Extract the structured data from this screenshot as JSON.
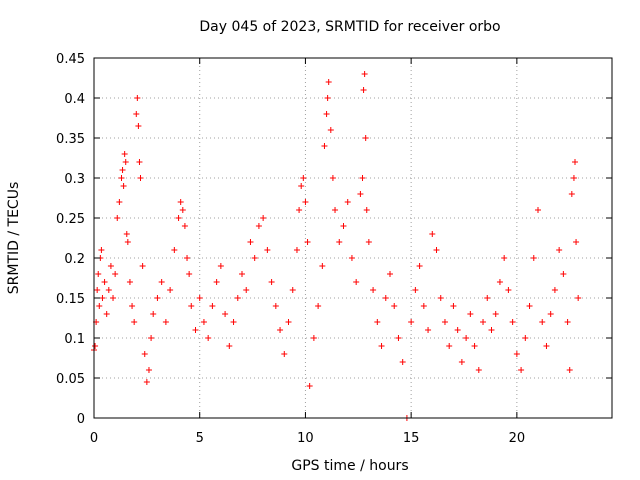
{
  "chart_data": {
    "type": "scatter",
    "title": "Day 045 of 2023, SRMTID for receiver orbo",
    "xlabel": "GPS time / hours",
    "ylabel": "SRMTID / TECUs",
    "xlim": [
      0,
      24.5
    ],
    "ylim": [
      0,
      0.45
    ],
    "xticks": [
      0,
      5,
      10,
      15,
      20
    ],
    "xtick_labels": [
      "0",
      "5",
      "10",
      "15",
      "20"
    ],
    "yticks": [
      0,
      0.05,
      0.1,
      0.15,
      0.2,
      0.25,
      0.3,
      0.35,
      0.4,
      0.45
    ],
    "ytick_labels": [
      "0",
      "0.05",
      "0.1",
      "0.15",
      "0.2",
      "0.25",
      "0.3",
      "0.35",
      "0.4",
      "0.45"
    ],
    "grid": true,
    "marker": "plus",
    "color": "#ff0000",
    "series": [
      {
        "name": "SRMTID",
        "points": [
          [
            0.0,
            0.085
          ],
          [
            0.05,
            0.09
          ],
          [
            0.1,
            0.12
          ],
          [
            0.15,
            0.16
          ],
          [
            0.2,
            0.18
          ],
          [
            0.25,
            0.14
          ],
          [
            0.3,
            0.2
          ],
          [
            0.35,
            0.21
          ],
          [
            0.4,
            0.15
          ],
          [
            0.5,
            0.17
          ],
          [
            0.6,
            0.13
          ],
          [
            0.7,
            0.16
          ],
          [
            0.8,
            0.19
          ],
          [
            0.9,
            0.15
          ],
          [
            1.0,
            0.18
          ],
          [
            1.1,
            0.25
          ],
          [
            1.2,
            0.27
          ],
          [
            1.3,
            0.3
          ],
          [
            1.35,
            0.31
          ],
          [
            1.4,
            0.29
          ],
          [
            1.45,
            0.33
          ],
          [
            1.5,
            0.32
          ],
          [
            1.55,
            0.23
          ],
          [
            1.6,
            0.22
          ],
          [
            1.7,
            0.17
          ],
          [
            1.8,
            0.14
          ],
          [
            1.9,
            0.12
          ],
          [
            2.0,
            0.38
          ],
          [
            2.05,
            0.4
          ],
          [
            2.1,
            0.365
          ],
          [
            2.15,
            0.32
          ],
          [
            2.2,
            0.3
          ],
          [
            2.3,
            0.19
          ],
          [
            2.4,
            0.08
          ],
          [
            2.5,
            0.045
          ],
          [
            2.6,
            0.06
          ],
          [
            2.7,
            0.1
          ],
          [
            2.8,
            0.13
          ],
          [
            3.0,
            0.15
          ],
          [
            3.2,
            0.17
          ],
          [
            3.4,
            0.12
          ],
          [
            3.6,
            0.16
          ],
          [
            3.8,
            0.21
          ],
          [
            4.0,
            0.25
          ],
          [
            4.1,
            0.27
          ],
          [
            4.2,
            0.26
          ],
          [
            4.3,
            0.24
          ],
          [
            4.4,
            0.2
          ],
          [
            4.5,
            0.18
          ],
          [
            4.6,
            0.14
          ],
          [
            4.8,
            0.11
          ],
          [
            5.0,
            0.15
          ],
          [
            5.2,
            0.12
          ],
          [
            5.4,
            0.1
          ],
          [
            5.6,
            0.14
          ],
          [
            5.8,
            0.17
          ],
          [
            6.0,
            0.19
          ],
          [
            6.2,
            0.13
          ],
          [
            6.4,
            0.09
          ],
          [
            6.6,
            0.12
          ],
          [
            6.8,
            0.15
          ],
          [
            7.0,
            0.18
          ],
          [
            7.2,
            0.16
          ],
          [
            7.4,
            0.22
          ],
          [
            7.6,
            0.2
          ],
          [
            7.8,
            0.24
          ],
          [
            8.0,
            0.25
          ],
          [
            8.2,
            0.21
          ],
          [
            8.4,
            0.17
          ],
          [
            8.6,
            0.14
          ],
          [
            8.8,
            0.11
          ],
          [
            9.0,
            0.08
          ],
          [
            9.2,
            0.12
          ],
          [
            9.4,
            0.16
          ],
          [
            9.6,
            0.21
          ],
          [
            9.7,
            0.26
          ],
          [
            9.8,
            0.29
          ],
          [
            9.9,
            0.3
          ],
          [
            10.0,
            0.27
          ],
          [
            10.1,
            0.22
          ],
          [
            10.2,
            0.04
          ],
          [
            10.4,
            0.1
          ],
          [
            10.6,
            0.14
          ],
          [
            10.8,
            0.19
          ],
          [
            10.9,
            0.34
          ],
          [
            11.0,
            0.38
          ],
          [
            11.05,
            0.4
          ],
          [
            11.1,
            0.42
          ],
          [
            11.2,
            0.36
          ],
          [
            11.3,
            0.3
          ],
          [
            11.4,
            0.26
          ],
          [
            11.6,
            0.22
          ],
          [
            11.8,
            0.24
          ],
          [
            12.0,
            0.27
          ],
          [
            12.2,
            0.2
          ],
          [
            12.4,
            0.17
          ],
          [
            12.6,
            0.28
          ],
          [
            12.7,
            0.3
          ],
          [
            12.75,
            0.41
          ],
          [
            12.8,
            0.43
          ],
          [
            12.85,
            0.35
          ],
          [
            12.9,
            0.26
          ],
          [
            13.0,
            0.22
          ],
          [
            13.2,
            0.16
          ],
          [
            13.4,
            0.12
          ],
          [
            13.6,
            0.09
          ],
          [
            13.8,
            0.15
          ],
          [
            14.0,
            0.18
          ],
          [
            14.2,
            0.14
          ],
          [
            14.4,
            0.1
          ],
          [
            14.6,
            0.07
          ],
          [
            14.8,
            0.0
          ],
          [
            15.0,
            0.12
          ],
          [
            15.2,
            0.16
          ],
          [
            15.4,
            0.19
          ],
          [
            15.6,
            0.14
          ],
          [
            15.8,
            0.11
          ],
          [
            16.0,
            0.23
          ],
          [
            16.2,
            0.21
          ],
          [
            16.4,
            0.15
          ],
          [
            16.6,
            0.12
          ],
          [
            16.8,
            0.09
          ],
          [
            17.0,
            0.14
          ],
          [
            17.2,
            0.11
          ],
          [
            17.4,
            0.07
          ],
          [
            17.6,
            0.1
          ],
          [
            17.8,
            0.13
          ],
          [
            18.0,
            0.09
          ],
          [
            18.2,
            0.06
          ],
          [
            18.4,
            0.12
          ],
          [
            18.6,
            0.15
          ],
          [
            18.8,
            0.11
          ],
          [
            19.0,
            0.13
          ],
          [
            19.2,
            0.17
          ],
          [
            19.4,
            0.2
          ],
          [
            19.6,
            0.16
          ],
          [
            19.8,
            0.12
          ],
          [
            20.0,
            0.08
          ],
          [
            20.2,
            0.06
          ],
          [
            20.4,
            0.1
          ],
          [
            20.6,
            0.14
          ],
          [
            20.8,
            0.2
          ],
          [
            21.0,
            0.26
          ],
          [
            21.2,
            0.12
          ],
          [
            21.4,
            0.09
          ],
          [
            21.6,
            0.13
          ],
          [
            21.8,
            0.16
          ],
          [
            22.0,
            0.21
          ],
          [
            22.2,
            0.18
          ],
          [
            22.4,
            0.12
          ],
          [
            22.5,
            0.06
          ],
          [
            22.6,
            0.28
          ],
          [
            22.7,
            0.3
          ],
          [
            22.75,
            0.32
          ],
          [
            22.8,
            0.22
          ],
          [
            22.9,
            0.15
          ]
        ]
      }
    ]
  }
}
